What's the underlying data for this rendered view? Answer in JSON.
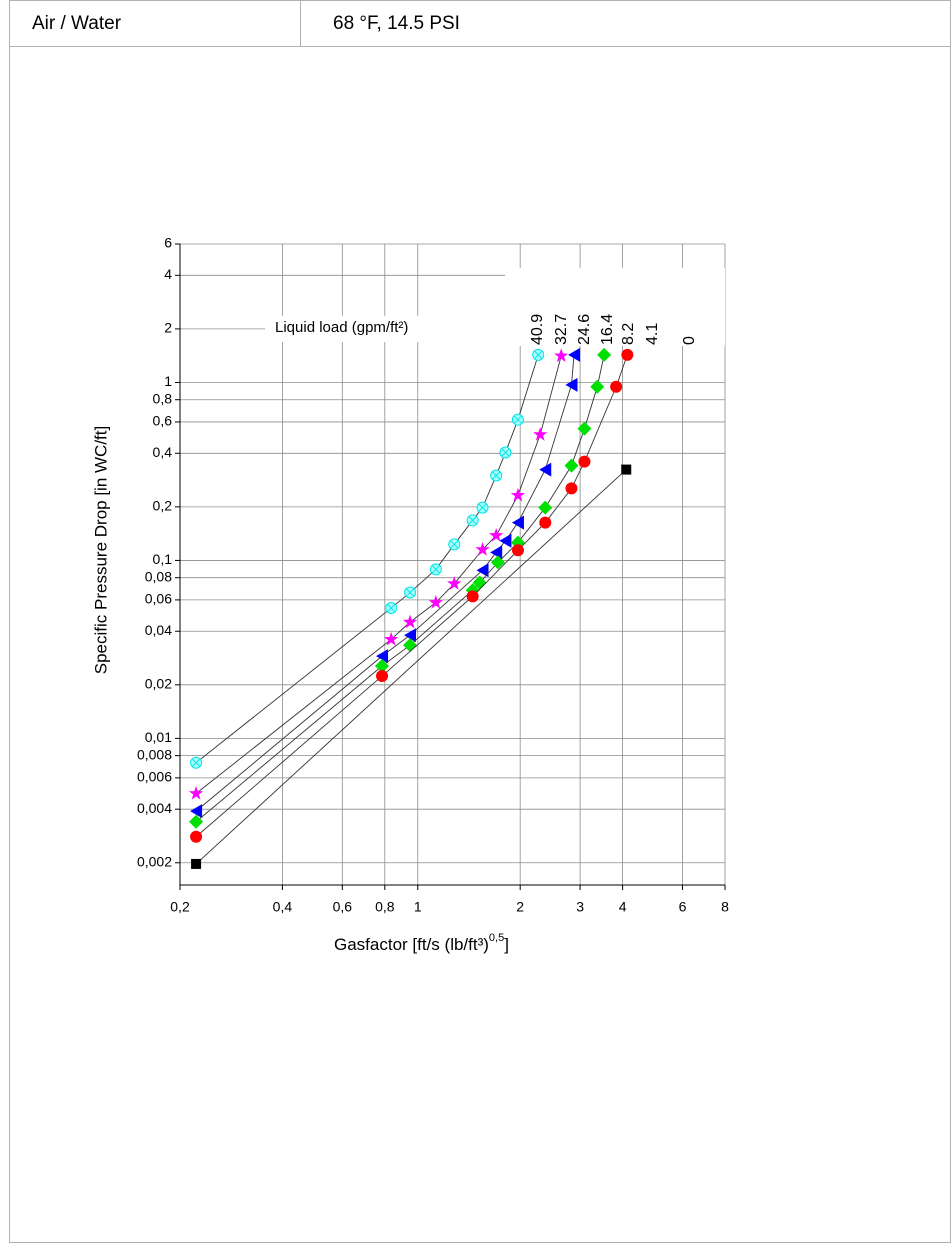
{
  "table": {
    "rows": [
      [
        "Air / Water",
        "68 °F, 14.5 PSI"
      ]
    ]
  },
  "chart_data": {
    "type": "scatter",
    "connect_points": true,
    "log_x": true,
    "log_y": true,
    "grid": true,
    "annotation": "Liquid load (gpm/ft²)",
    "ylabel": "Specific Pressure Drop [in WC/ft]",
    "xlabel": "Gasfactor [ft/s (lb/ft³)",
    "xlabel_exponent": "0,5",
    "xlabel_end": "]",
    "xlim": [
      0.2,
      8
    ],
    "ylim": [
      0.0015,
      6
    ],
    "xticks": [
      {
        "value": 0.2,
        "label": "0,2"
      },
      {
        "value": 0.4,
        "label": "0,4"
      },
      {
        "value": 0.6,
        "label": "0,6"
      },
      {
        "value": 0.8,
        "label": "0,8"
      },
      1,
      2,
      3,
      4,
      6,
      8
    ],
    "yticks": [
      {
        "value": 0.002,
        "label": "0,002"
      },
      {
        "value": 0.004,
        "label": "0,004"
      },
      {
        "value": 0.006,
        "label": "0,006"
      },
      {
        "value": 0.008,
        "label": "0,008"
      },
      {
        "value": 0.01,
        "label": "0,01"
      },
      {
        "value": 0.02,
        "label": "0,02"
      },
      {
        "value": 0.04,
        "label": "0,04"
      },
      {
        "value": 0.06,
        "label": "0,06"
      },
      {
        "value": 0.08,
        "label": "0,08"
      },
      {
        "value": 0.1,
        "label": "0,1"
      },
      {
        "value": 0.2,
        "label": "0,2"
      },
      {
        "value": 0.4,
        "label": "0,4"
      },
      {
        "value": 0.6,
        "label": "0,6"
      },
      {
        "value": 0.8,
        "label": "0,8"
      },
      1,
      2,
      4,
      6
    ],
    "series": [
      {
        "name": "40.9",
        "color": "#00e5e5",
        "marker": "crossed-circle",
        "x": [
          0.223,
          0.835,
          0.949,
          1.13,
          1.28,
          1.45,
          1.55,
          1.7,
          1.81,
          1.97,
          2.26
        ],
        "values": [
          0.0073,
          0.054,
          0.066,
          0.089,
          0.123,
          0.168,
          0.198,
          0.3,
          0.404,
          0.618,
          1.43
        ]
      },
      {
        "name": "32.7",
        "color": "#ff00ff",
        "marker": "star",
        "x": [
          0.223,
          0.835,
          0.949,
          1.13,
          1.28,
          1.55,
          1.7,
          1.97,
          2.29,
          2.64
        ],
        "values": [
          0.0049,
          0.036,
          0.045,
          0.058,
          0.074,
          0.115,
          0.138,
          0.232,
          0.509,
          1.41
        ]
      },
      {
        "name": "24.6",
        "color": "#0000ff",
        "marker": "triangle-left",
        "x": [
          0.223,
          0.785,
          0.949,
          1.55,
          1.7,
          1.81,
          1.97,
          2.37,
          2.83,
          2.88
        ],
        "values": [
          0.0039,
          0.029,
          0.038,
          0.088,
          0.111,
          0.129,
          0.163,
          0.324,
          0.97,
          1.43
        ]
      },
      {
        "name": "16.4",
        "color": "#00e000",
        "marker": "diamond",
        "x": [
          0.223,
          0.785,
          0.949,
          1.45,
          1.52,
          1.72,
          1.97,
          2.37,
          2.83,
          3.09,
          3.37,
          3.53
        ],
        "values": [
          0.0034,
          0.0255,
          0.0334,
          0.068,
          0.075,
          0.0975,
          0.126,
          0.198,
          0.341,
          0.55,
          0.946,
          1.43
        ]
      },
      {
        "name": "8.2",
        "color": "#ff0000",
        "marker": "circle",
        "x": [
          0.223,
          0.785,
          1.45,
          1.97,
          2.37,
          2.83,
          3.09,
          3.83,
          4.13
        ],
        "values": [
          0.0028,
          0.0224,
          0.0628,
          0.114,
          0.163,
          0.254,
          0.359,
          0.946,
          1.43
        ]
      },
      {
        "name": "4.1",
        "x": [],
        "values": []
      },
      {
        "name": "0",
        "color": "#000000",
        "marker": "square",
        "x": [
          0.223,
          4.1
        ],
        "values": [
          0.00197,
          0.324
        ]
      }
    ]
  }
}
